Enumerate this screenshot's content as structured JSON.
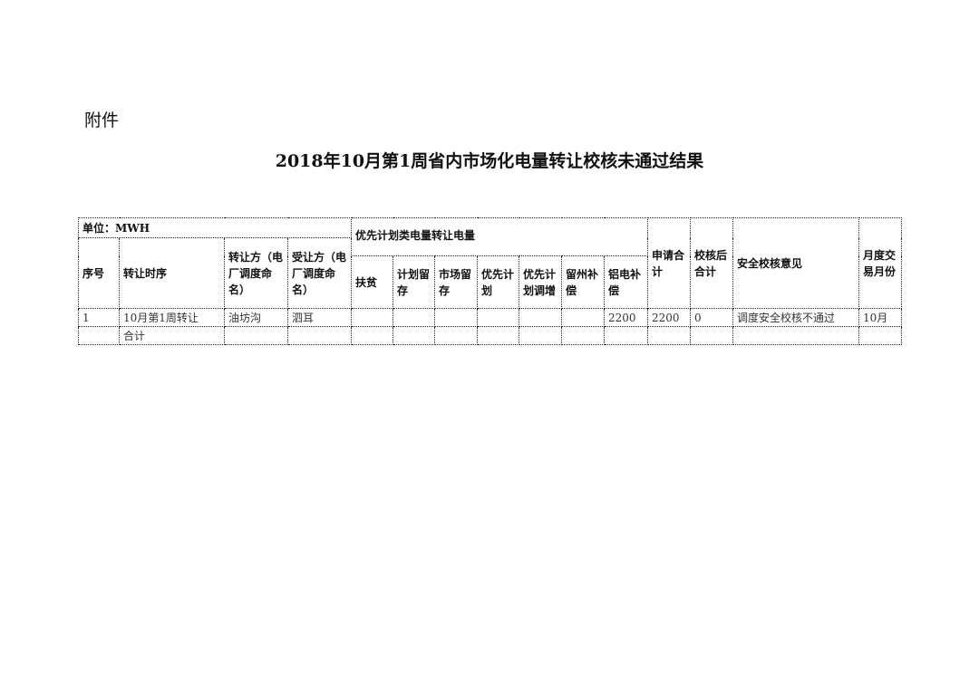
{
  "attachment": "附件",
  "title": "2018年10月第1周省内市场化电量转让校核未通过结果",
  "table": {
    "unit": "单位：MWH",
    "group": "优先计划类电量转让电量",
    "headers": [
      "序号",
      "转让时序",
      "转让方（电厂调度命名）",
      "受让方（电厂调度命名）",
      "扶贫",
      "计划留存",
      "市场留存",
      "优先计划",
      "优先计划调增",
      "留州补偿",
      "铝电补偿",
      "申请合计",
      "校核后合计",
      "安全校核意见",
      "月度交易月份"
    ],
    "rows": [
      [
        "1",
        "10月第1周转让",
        "油坊沟",
        "泗耳",
        "",
        "",
        "",
        "",
        "",
        "",
        "2200",
        "2200",
        "0",
        "调度安全校核不通过",
        "10月"
      ],
      [
        "",
        "合计",
        "",
        "",
        "",
        "",
        "",
        "",
        "",
        "",
        "",
        "",
        "",
        "",
        ""
      ]
    ]
  }
}
